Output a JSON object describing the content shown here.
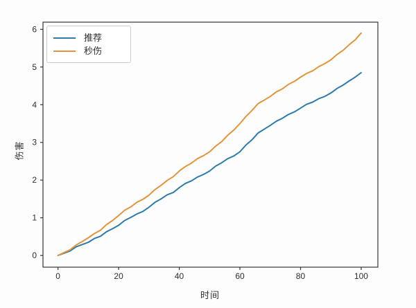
{
  "figure": {
    "xlabel": "时间",
    "ylabel": "伤害",
    "background": "#fdfdfd",
    "spine_color": "#333333"
  },
  "legend": {
    "items": [
      {
        "label": "推荐",
        "color": "#2b7bab"
      },
      {
        "label": "秒伤",
        "color": "#e2953b"
      }
    ]
  },
  "chart_data": {
    "type": "line",
    "title": "",
    "xlabel": "时间",
    "ylabel": "伤害",
    "xlim": [
      -4.95,
      105.5
    ],
    "ylim": [
      -0.31,
      6.19
    ],
    "xticks": [
      0,
      20,
      40,
      60,
      80,
      100
    ],
    "yticks": [
      0,
      1,
      2,
      3,
      4,
      5,
      6
    ],
    "grid": false,
    "legend_position": "upper left",
    "x": [
      0,
      2,
      4,
      6,
      8,
      10,
      12,
      14,
      16,
      18,
      20,
      22,
      24,
      26,
      28,
      30,
      32,
      34,
      36,
      38,
      40,
      42,
      44,
      46,
      48,
      50,
      52,
      54,
      56,
      58,
      60,
      62,
      64,
      66,
      68,
      70,
      72,
      74,
      76,
      78,
      80,
      82,
      84,
      86,
      88,
      90,
      92,
      94,
      96,
      98,
      100
    ],
    "series": [
      {
        "name": "推荐",
        "color": "#2b7bab",
        "values": [
          0,
          0.06,
          0.12,
          0.23,
          0.29,
          0.35,
          0.45,
          0.51,
          0.63,
          0.71,
          0.8,
          0.93,
          1.01,
          1.1,
          1.17,
          1.28,
          1.41,
          1.5,
          1.61,
          1.67,
          1.8,
          1.91,
          1.98,
          2.08,
          2.15,
          2.24,
          2.37,
          2.46,
          2.57,
          2.64,
          2.75,
          2.93,
          3.07,
          3.25,
          3.35,
          3.45,
          3.56,
          3.64,
          3.74,
          3.81,
          3.91,
          4.01,
          4.07,
          4.16,
          4.22,
          4.31,
          4.43,
          4.52,
          4.63,
          4.73,
          4.85
        ]
      },
      {
        "name": "秒伤",
        "color": "#e2953b",
        "values": [
          0,
          0.08,
          0.15,
          0.28,
          0.37,
          0.47,
          0.58,
          0.67,
          0.82,
          0.93,
          1.06,
          1.2,
          1.29,
          1.41,
          1.49,
          1.6,
          1.75,
          1.86,
          1.99,
          2.09,
          2.24,
          2.36,
          2.45,
          2.57,
          2.65,
          2.75,
          2.9,
          3.02,
          3.19,
          3.33,
          3.5,
          3.69,
          3.85,
          4.03,
          4.12,
          4.22,
          4.34,
          4.42,
          4.54,
          4.62,
          4.73,
          4.83,
          4.9,
          5.01,
          5.09,
          5.19,
          5.33,
          5.44,
          5.59,
          5.72,
          5.9
        ]
      }
    ]
  }
}
